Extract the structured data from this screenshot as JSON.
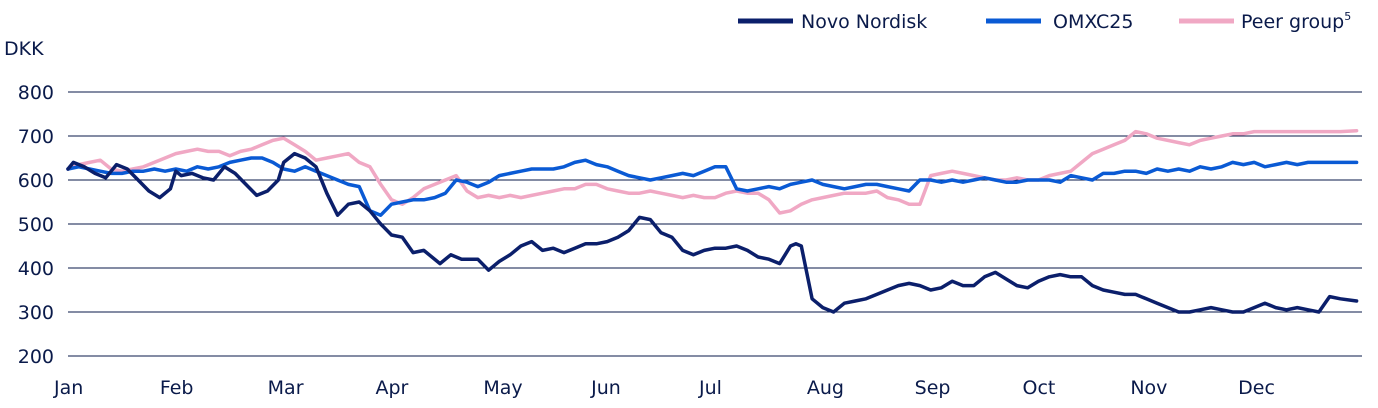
{
  "chart_data": {
    "type": "line",
    "ylabel": "DKK",
    "ylim": [
      200,
      800
    ],
    "yticks": [
      "200",
      "300",
      "400",
      "500",
      "600",
      "700",
      "800"
    ],
    "x_months": [
      "Jan",
      "Feb",
      "Mar",
      "Apr",
      "May",
      "Jun",
      "Jul",
      "Aug",
      "Sep",
      "Oct",
      "Nov",
      "Dec"
    ],
    "grid": "horizontal",
    "legend_position": "top-right",
    "series": [
      {
        "name": "Novo Nordisk",
        "color": "#0b1f6b",
        "x": [
          0,
          0.05,
          0.15,
          0.25,
          0.35,
          0.45,
          0.55,
          0.65,
          0.75,
          0.85,
          0.95,
          1,
          1.05,
          1.15,
          1.25,
          1.35,
          1.45,
          1.55,
          1.65,
          1.75,
          1.85,
          1.95,
          2,
          2.05,
          2.1,
          2.2,
          2.3,
          2.4,
          2.5,
          2.6,
          2.7,
          2.8,
          2.9,
          3,
          3.1,
          3.2,
          3.3,
          3.45,
          3.55,
          3.65,
          3.8,
          3.9,
          4,
          4.1,
          4.2,
          4.3,
          4.4,
          4.5,
          4.6,
          4.7,
          4.8,
          4.9,
          5,
          5.1,
          5.2,
          5.3,
          5.4,
          5.5,
          5.6,
          5.7,
          5.8,
          5.9,
          6,
          6.1,
          6.2,
          6.3,
          6.4,
          6.5,
          6.6,
          6.7,
          6.75,
          6.8,
          6.9,
          7,
          7.1,
          7.2,
          7.3,
          7.4,
          7.5,
          7.6,
          7.7,
          7.8,
          7.9,
          8,
          8.1,
          8.2,
          8.3,
          8.4,
          8.5,
          8.6,
          8.7,
          8.8,
          8.9,
          9,
          9.1,
          9.2,
          9.3,
          9.4,
          9.5,
          9.6,
          9.7,
          9.8,
          9.9,
          10,
          10.1,
          10.2,
          10.3,
          10.4,
          10.5,
          10.6,
          10.7,
          10.8,
          10.9,
          11,
          11.1,
          11.2,
          11.3,
          11.4,
          11.5,
          11.6,
          11.7,
          11.8,
          11.95
        ],
        "y": [
          625,
          640,
          630,
          615,
          605,
          635,
          625,
          600,
          575,
          560,
          580,
          620,
          610,
          615,
          605,
          600,
          630,
          615,
          590,
          565,
          575,
          600,
          640,
          650,
          660,
          650,
          630,
          570,
          520,
          545,
          550,
          530,
          500,
          475,
          470,
          435,
          440,
          410,
          430,
          420,
          420,
          395,
          415,
          430,
          450,
          460,
          440,
          445,
          435,
          445,
          455,
          455,
          460,
          470,
          485,
          515,
          510,
          480,
          470,
          440,
          430,
          440,
          445,
          445,
          450,
          440,
          425,
          420,
          410,
          450,
          455,
          450,
          330,
          310,
          300,
          320,
          325,
          330,
          340,
          350,
          360,
          365,
          360,
          350,
          355,
          370,
          360,
          360,
          380,
          390,
          375,
          360,
          355,
          370,
          380,
          385,
          380,
          380,
          360,
          350,
          345,
          340,
          340,
          330,
          320,
          310,
          300,
          300,
          305,
          310,
          305,
          300,
          300,
          310,
          320,
          310,
          305,
          310,
          305,
          300,
          335,
          330,
          325
        ]
      },
      {
        "name": "OMXC25",
        "color": "#0a5ad4",
        "x": [
          0,
          0.1,
          0.2,
          0.3,
          0.4,
          0.5,
          0.6,
          0.7,
          0.8,
          0.9,
          1,
          1.1,
          1.2,
          1.3,
          1.4,
          1.5,
          1.6,
          1.7,
          1.8,
          1.9,
          2,
          2.1,
          2.2,
          2.3,
          2.4,
          2.5,
          2.6,
          2.7,
          2.8,
          2.9,
          3,
          3.1,
          3.2,
          3.3,
          3.4,
          3.5,
          3.6,
          3.7,
          3.8,
          3.9,
          4,
          4.1,
          4.2,
          4.3,
          4.4,
          4.5,
          4.6,
          4.7,
          4.8,
          4.9,
          5,
          5.1,
          5.2,
          5.3,
          5.4,
          5.5,
          5.6,
          5.7,
          5.8,
          5.9,
          6,
          6.1,
          6.2,
          6.3,
          6.4,
          6.5,
          6.6,
          6.7,
          6.8,
          6.9,
          7,
          7.1,
          7.2,
          7.3,
          7.4,
          7.5,
          7.6,
          7.7,
          7.8,
          7.9,
          8,
          8.1,
          8.2,
          8.3,
          8.4,
          8.5,
          8.6,
          8.7,
          8.8,
          8.9,
          9,
          9.1,
          9.2,
          9.3,
          9.4,
          9.5,
          9.6,
          9.7,
          9.8,
          9.9,
          10,
          10.1,
          10.2,
          10.3,
          10.4,
          10.5,
          10.6,
          10.7,
          10.8,
          10.9,
          11,
          11.1,
          11.2,
          11.3,
          11.4,
          11.5,
          11.6,
          11.7,
          11.8,
          11.95
        ],
        "y": [
          625,
          630,
          625,
          620,
          615,
          615,
          620,
          620,
          625,
          620,
          625,
          620,
          630,
          625,
          630,
          640,
          645,
          650,
          650,
          640,
          625,
          620,
          630,
          620,
          610,
          600,
          590,
          585,
          530,
          520,
          545,
          550,
          555,
          555,
          560,
          570,
          600,
          595,
          585,
          595,
          610,
          615,
          620,
          625,
          625,
          625,
          630,
          640,
          645,
          635,
          630,
          620,
          610,
          605,
          600,
          605,
          610,
          615,
          610,
          620,
          630,
          630,
          580,
          575,
          580,
          585,
          580,
          590,
          595,
          600,
          590,
          585,
          580,
          585,
          590,
          590,
          585,
          580,
          575,
          600,
          600,
          595,
          600,
          595,
          600,
          605,
          600,
          595,
          595,
          600,
          600,
          600,
          595,
          610,
          605,
          600,
          615,
          615,
          620,
          620,
          615,
          625,
          620,
          625,
          620,
          630,
          625,
          630,
          640,
          635,
          640,
          630,
          635,
          640,
          635,
          640,
          640,
          640,
          640,
          640
        ]
      },
      {
        "name": "Peer group",
        "color": "#f0a8c4",
        "x": [
          0,
          0.1,
          0.2,
          0.3,
          0.4,
          0.5,
          0.6,
          0.7,
          0.8,
          0.9,
          1,
          1.1,
          1.2,
          1.3,
          1.4,
          1.5,
          1.6,
          1.7,
          1.8,
          1.9,
          2,
          2.1,
          2.2,
          2.3,
          2.4,
          2.5,
          2.6,
          2.7,
          2.8,
          2.9,
          3,
          3.1,
          3.2,
          3.3,
          3.4,
          3.5,
          3.6,
          3.7,
          3.8,
          3.9,
          4,
          4.1,
          4.2,
          4.3,
          4.4,
          4.5,
          4.6,
          4.7,
          4.8,
          4.9,
          5,
          5.1,
          5.2,
          5.3,
          5.4,
          5.5,
          5.6,
          5.7,
          5.8,
          5.9,
          6,
          6.1,
          6.2,
          6.3,
          6.4,
          6.5,
          6.6,
          6.7,
          6.8,
          6.9,
          7,
          7.1,
          7.2,
          7.3,
          7.4,
          7.5,
          7.6,
          7.7,
          7.8,
          7.9,
          8,
          8.1,
          8.2,
          8.3,
          8.4,
          8.5,
          8.6,
          8.7,
          8.8,
          8.9,
          9,
          9.1,
          9.2,
          9.3,
          9.4,
          9.5,
          9.6,
          9.7,
          9.8,
          9.9,
          10,
          10.1,
          10.2,
          10.3,
          10.4,
          10.5,
          10.6,
          10.7,
          10.8,
          10.9,
          11,
          11.1,
          11.2,
          11.3,
          11.4,
          11.5,
          11.6,
          11.7,
          11.8,
          11.95
        ],
        "y": [
          625,
          635,
          640,
          645,
          625,
          620,
          625,
          630,
          640,
          650,
          660,
          665,
          670,
          665,
          665,
          655,
          665,
          670,
          680,
          690,
          695,
          680,
          665,
          645,
          650,
          655,
          660,
          640,
          630,
          590,
          555,
          545,
          560,
          580,
          590,
          600,
          610,
          575,
          560,
          565,
          560,
          565,
          560,
          565,
          570,
          575,
          580,
          580,
          590,
          590,
          580,
          575,
          570,
          570,
          575,
          570,
          565,
          560,
          565,
          560,
          560,
          570,
          575,
          570,
          570,
          555,
          525,
          530,
          545,
          555,
          560,
          565,
          570,
          570,
          570,
          575,
          560,
          555,
          545,
          545,
          610,
          615,
          620,
          615,
          610,
          605,
          600,
          600,
          605,
          600,
          600,
          610,
          615,
          620,
          640,
          660,
          670,
          680,
          690,
          710,
          705,
          695,
          690,
          685,
          680,
          690,
          695,
          700,
          705,
          705,
          710,
          710,
          710,
          710,
          710,
          710,
          710,
          710,
          710,
          712
        ]
      }
    ]
  }
}
